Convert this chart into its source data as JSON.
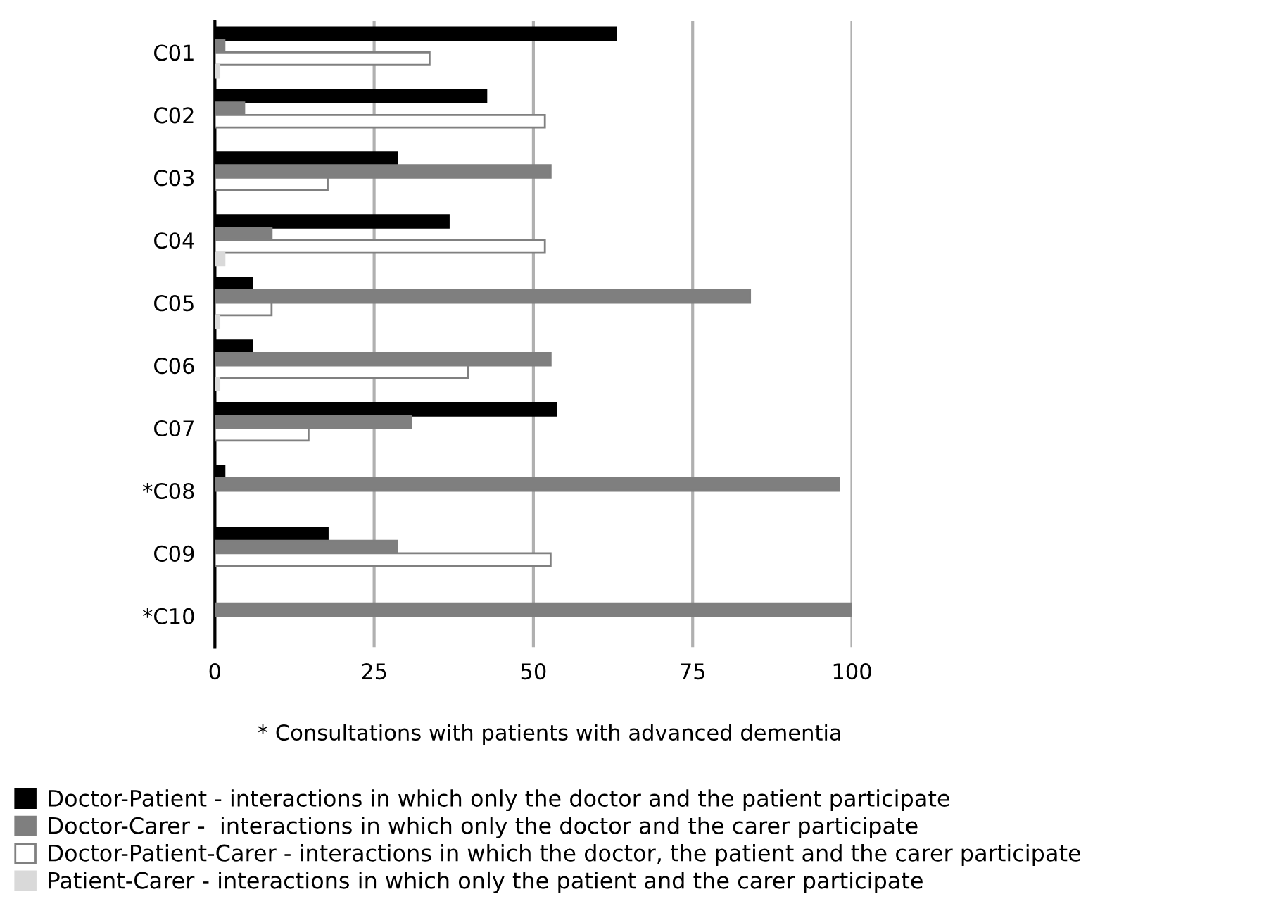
{
  "chart_data": {
    "type": "bar",
    "orientation": "horizontal",
    "categories": [
      "C01",
      "C02",
      "C03",
      "C04",
      "C05",
      "C06",
      "C07",
      "*C08",
      "C09",
      "*C10"
    ],
    "series": [
      {
        "name": "Doctor-Patient - interactions in which only the doctor and the patient participate",
        "color": "#000000",
        "values": [
          63,
          42.6,
          28.6,
          36.7,
          5.8,
          5.8,
          53.6,
          1.5,
          17.7,
          null
        ]
      },
      {
        "name": "Doctor-Carer -  interactions in which only the doctor and the carer participate",
        "color": "#7f7f7f",
        "values": [
          1.5,
          4.6,
          52.7,
          8.9,
          84,
          52.7,
          30.8,
          98,
          28.6,
          100
        ]
      },
      {
        "name": "Doctor-Patient-Carer - interactions in which the doctor, the patient and the carer participate",
        "color": "#ffffff",
        "values": [
          33.7,
          51.8,
          17.7,
          51.8,
          8.9,
          39.7,
          14.7,
          null,
          52.7,
          null
        ]
      },
      {
        "name": "Patient-Carer - interactions in which only the patient and the carer participate",
        "color": "#d9d9d9",
        "values": [
          0.7,
          null,
          null,
          1.5,
          0.7,
          0.7,
          null,
          null,
          null,
          null
        ]
      }
    ],
    "xlim": [
      0,
      100
    ],
    "xticks": [
      0,
      25,
      50,
      75,
      100
    ],
    "grid": "x",
    "legend": "bottom",
    "annotations": [
      "* Consultations with patients with advanced dementia"
    ]
  }
}
